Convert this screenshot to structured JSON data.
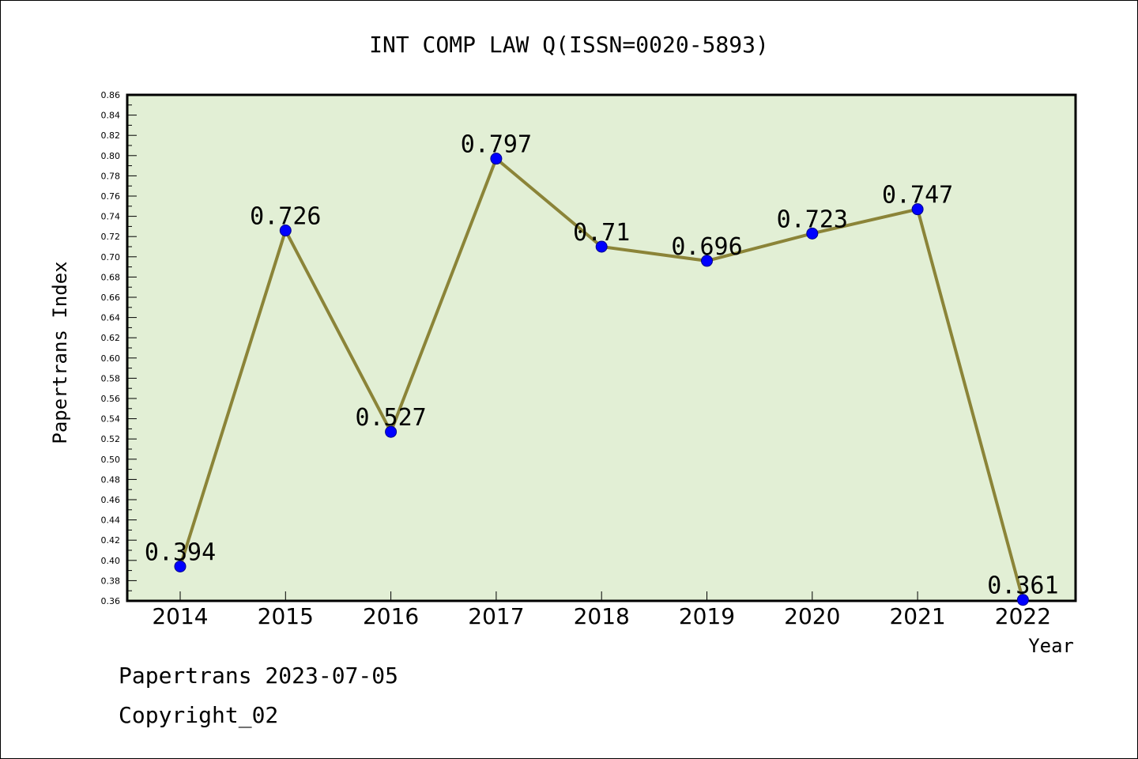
{
  "chart_data": {
    "type": "line",
    "title": "INT COMP LAW Q(ISSN=0020-5893)",
    "xlabel": "Year",
    "ylabel": "Papertrans Index",
    "categories": [
      "2014",
      "2015",
      "2016",
      "2017",
      "2018",
      "2019",
      "2020",
      "2021",
      "2022"
    ],
    "values": [
      0.394,
      0.726,
      0.527,
      0.797,
      0.71,
      0.696,
      0.723,
      0.747,
      0.361
    ],
    "data_labels": [
      "0.394",
      "0.726",
      "0.527",
      "0.797",
      "0.71",
      "0.696",
      "0.723",
      "0.747",
      "0.361"
    ],
    "ylim": [
      0.36,
      0.86
    ],
    "ytick_step": 0.02,
    "ytick_labels": [
      "0.36",
      "0.38",
      "0.40",
      "0.42",
      "0.44",
      "0.46",
      "0.48",
      "0.50",
      "0.52",
      "0.54",
      "0.56",
      "0.58",
      "0.60",
      "0.62",
      "0.64",
      "0.66",
      "0.68",
      "0.70",
      "0.72",
      "0.74",
      "0.76",
      "0.78",
      "0.80",
      "0.82",
      "0.84",
      "0.86"
    ],
    "grid": false,
    "legend": "none",
    "colors": {
      "plot_background": "#e2efd5",
      "line": "#8b8438",
      "marker": "#0000ff"
    }
  },
  "footer": {
    "line1": "Papertrans 2023-07-05",
    "line2": "Copyright_02"
  }
}
